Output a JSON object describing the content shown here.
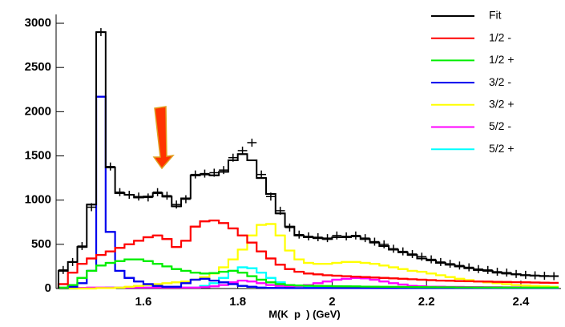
{
  "chart_data": {
    "type": "histogram",
    "xlabel": "M(K  p  ) (GeV)",
    "bins": [
      1.42,
      1.44,
      1.46,
      1.48,
      1.5,
      1.52,
      1.54,
      1.56,
      1.58,
      1.6,
      1.62,
      1.64,
      1.66,
      1.68,
      1.7,
      1.72,
      1.74,
      1.76,
      1.78,
      1.8,
      1.82,
      1.84,
      1.86,
      1.88,
      1.9,
      1.92,
      1.94,
      1.96,
      1.98,
      2,
      2.02,
      2.04,
      2.06,
      2.08,
      2.1,
      2.12,
      2.14,
      2.16,
      2.18,
      2.2,
      2.22,
      2.24,
      2.26,
      2.28,
      2.3,
      2.32,
      2.34,
      2.36,
      2.38,
      2.4,
      2.42,
      2.44,
      2.46,
      2.48
    ],
    "xlim": [
      1.415,
      2.485
    ],
    "ylim": [
      0,
      3100
    ],
    "xticks": [
      1.6,
      1.8,
      2,
      2.2,
      2.4
    ],
    "yticks": [
      0,
      500,
      1000,
      1500,
      2000,
      2500,
      3000
    ],
    "series": [
      {
        "name": "Fit",
        "color": "#000000",
        "values": [
          200,
          300,
          470,
          950,
          2900,
          1370,
          1080,
          1060,
          1030,
          1040,
          1080,
          1040,
          930,
          1020,
          1280,
          1290,
          1280,
          1320,
          1450,
          1520,
          1450,
          1250,
          1070,
          850,
          700,
          600,
          580,
          570,
          560,
          580,
          580,
          590,
          560,
          520,
          480,
          440,
          410,
          380,
          340,
          320,
          290,
          270,
          250,
          230,
          210,
          200,
          180,
          170,
          160,
          150,
          145,
          140,
          140
        ]
      },
      {
        "name": "1/2 -",
        "color": "#ff0000",
        "values": [
          50,
          180,
          280,
          340,
          380,
          420,
          460,
          500,
          540,
          580,
          600,
          560,
          470,
          540,
          700,
          760,
          770,
          740,
          680,
          600,
          520,
          420,
          340,
          270,
          220,
          190,
          170,
          160,
          150,
          145,
          140,
          135,
          130,
          125,
          120,
          115,
          110,
          105,
          100,
          95,
          90,
          88,
          85,
          82,
          80,
          78,
          76,
          74,
          72,
          70,
          68,
          66,
          64
        ]
      },
      {
        "name": "1/2 +",
        "color": "#00ee00",
        "values": [
          10,
          40,
          120,
          200,
          260,
          290,
          310,
          330,
          330,
          310,
          280,
          250,
          220,
          200,
          180,
          170,
          175,
          190,
          200,
          180,
          140,
          100,
          70,
          50,
          40,
          35,
          32,
          30,
          28,
          26,
          25,
          24,
          22,
          21,
          20,
          19,
          18,
          17,
          16,
          15,
          14,
          14,
          13,
          13,
          12,
          12,
          11,
          11,
          10,
          10,
          10,
          10,
          10
        ]
      },
      {
        "name": "3/2 -",
        "color": "#0000ee",
        "values": [
          5,
          20,
          60,
          200,
          2170,
          640,
          200,
          120,
          80,
          50,
          30,
          20,
          20,
          60,
          100,
          110,
          90,
          70,
          50,
          30,
          20,
          10,
          8,
          6,
          5,
          5,
          5,
          5,
          5,
          5,
          5,
          5,
          5,
          5,
          5,
          5,
          5,
          5,
          5,
          5,
          5,
          5,
          5,
          5,
          5,
          5,
          5,
          5,
          5,
          5,
          5,
          5,
          5
        ]
      },
      {
        "name": "3/2 +",
        "color": "#ffff00",
        "values": [
          0,
          0,
          0,
          0,
          5,
          5,
          10,
          20,
          30,
          40,
          50,
          60,
          70,
          80,
          100,
          130,
          170,
          240,
          330,
          440,
          600,
          720,
          730,
          600,
          430,
          330,
          290,
          280,
          280,
          290,
          300,
          300,
          290,
          280,
          260,
          240,
          220,
          200,
          190,
          170,
          150,
          130,
          110,
          95,
          80,
          70,
          60,
          50,
          40,
          35,
          30,
          25,
          20
        ]
      },
      {
        "name": "5/2 -",
        "color": "#ff00ff",
        "values": [
          5,
          5,
          8,
          10,
          10,
          10,
          10,
          10,
          10,
          10,
          10,
          10,
          10,
          10,
          10,
          15,
          25,
          40,
          70,
          90,
          80,
          60,
          40,
          30,
          25,
          30,
          40,
          60,
          80,
          100,
          110,
          120,
          115,
          100,
          80,
          60,
          45,
          30,
          25,
          20,
          20,
          18,
          18,
          16,
          16,
          15,
          15,
          14,
          14,
          13,
          13,
          12,
          12
        ]
      },
      {
        "name": "5/2 +",
        "color": "#00ffff",
        "values": [
          0,
          0,
          2,
          5,
          8,
          10,
          10,
          10,
          10,
          10,
          10,
          10,
          10,
          10,
          10,
          30,
          60,
          120,
          200,
          240,
          230,
          180,
          120,
          70,
          40,
          30,
          25,
          20,
          20,
          18,
          16,
          15,
          14,
          13,
          12,
          11,
          10,
          10,
          9,
          9,
          8,
          8,
          7,
          7,
          7,
          6,
          6,
          6,
          5,
          5,
          5,
          5,
          5
        ]
      }
    ],
    "points": {
      "color": "#000000",
      "values": [
        210,
        300,
        480,
        920,
        2900,
        1380,
        1090,
        1060,
        1040,
        1030,
        1090,
        1050,
        950,
        1010,
        1290,
        1300,
        1310,
        1340,
        1480,
        1560,
        1650,
        1290,
        1040,
        880,
        690,
        610,
        590,
        580,
        570,
        600,
        590,
        600,
        570,
        530,
        500,
        450,
        420,
        390,
        360,
        330,
        300,
        280,
        260,
        240,
        220,
        210,
        190,
        180,
        165,
        155,
        150,
        145,
        140
      ]
    },
    "legend": "upper right"
  }
}
